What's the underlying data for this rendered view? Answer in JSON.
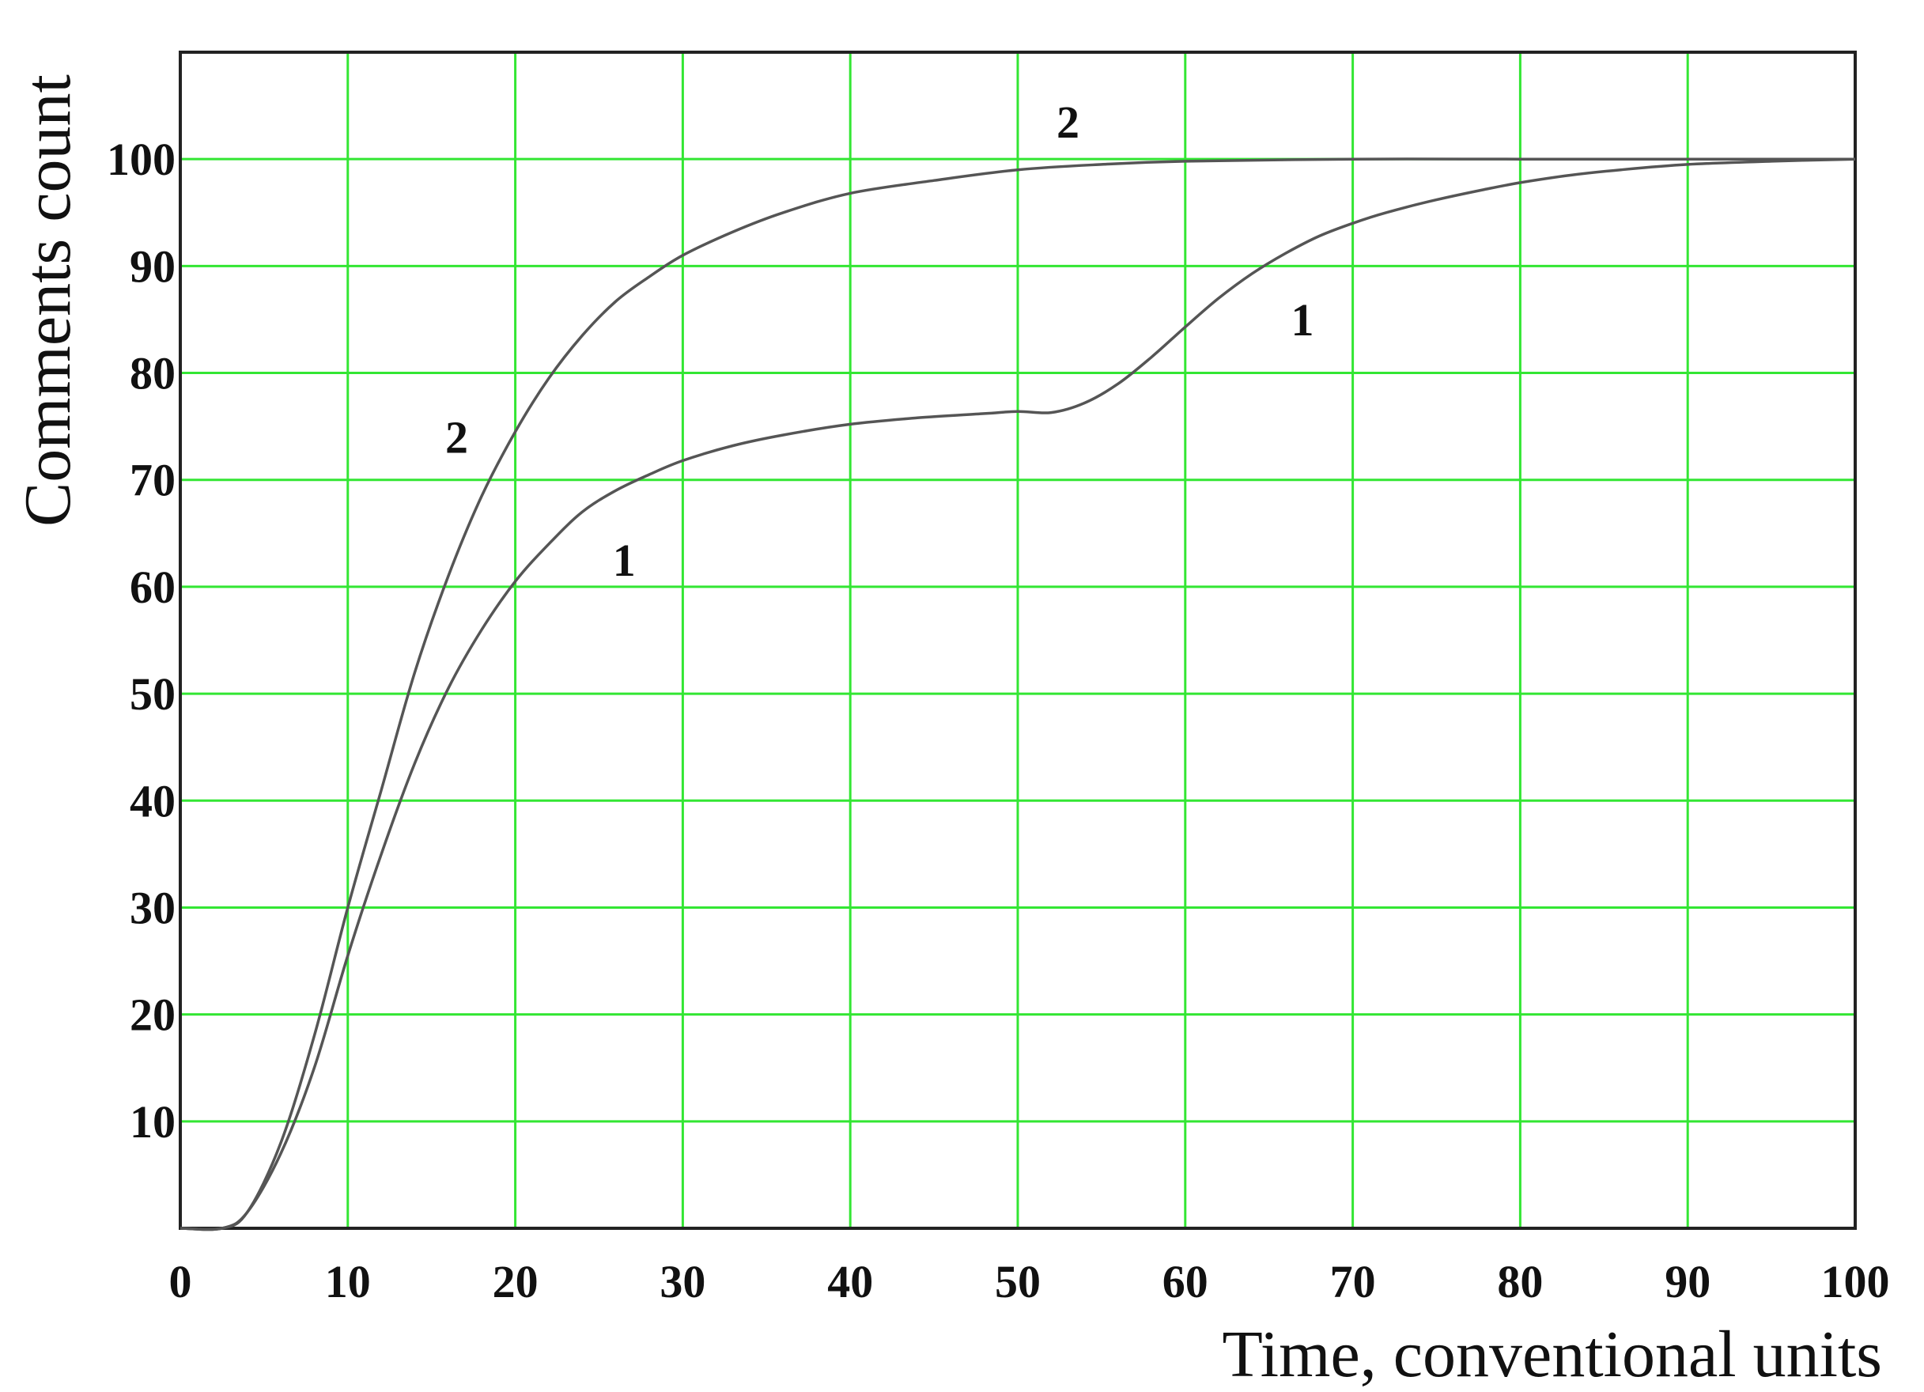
{
  "chart_data": {
    "type": "line",
    "title": "",
    "xlabel": "Time, conventional units",
    "ylabel": "Comments count",
    "xlim": [
      0,
      100
    ],
    "ylim": [
      0,
      110
    ],
    "x_ticks": [
      0,
      10,
      20,
      30,
      40,
      50,
      60,
      70,
      80,
      90,
      100
    ],
    "y_ticks": [
      10,
      20,
      30,
      40,
      50,
      60,
      70,
      80,
      90,
      100
    ],
    "x_tick_labels": [
      "0",
      "10",
      "20",
      "30",
      "40",
      "50",
      "60",
      "70",
      "80",
      "90",
      "100"
    ],
    "y_tick_labels": [
      "10",
      "20",
      "30",
      "40",
      "50",
      "60",
      "70",
      "80",
      "90",
      "100"
    ],
    "grid": true,
    "colors": {
      "grid": "#33e633",
      "curves": "#555555",
      "frame": "#222222"
    },
    "series": [
      {
        "name": "1",
        "x": [
          0,
          2.5,
          4,
          6,
          8,
          10,
          12,
          14,
          16,
          18,
          20,
          22,
          24,
          26,
          28,
          30,
          33,
          36,
          40,
          44,
          48,
          50,
          52,
          54,
          56,
          58,
          60,
          62,
          64,
          66,
          68,
          70,
          72,
          75,
          78,
          80,
          83,
          86,
          90,
          95,
          100
        ],
        "y": [
          0,
          0,
          1.5,
          7,
          15,
          25.5,
          35,
          43.5,
          50.5,
          56,
          60.5,
          64,
          67,
          69,
          70.5,
          71.8,
          73.2,
          74.2,
          75.2,
          75.8,
          76.2,
          76.4,
          76.3,
          77.2,
          79,
          81.5,
          84.3,
          87,
          89.3,
          91.2,
          92.8,
          94,
          95,
          96.2,
          97.2,
          97.8,
          98.5,
          99,
          99.5,
          99.8,
          100
        ]
      },
      {
        "name": "2",
        "x": [
          0,
          2.5,
          4,
          6,
          8,
          10,
          12,
          14,
          16,
          18,
          20,
          22,
          24,
          26,
          28,
          30,
          33,
          36,
          40,
          45,
          50,
          55,
          60,
          70,
          80,
          90,
          100
        ],
        "y": [
          0,
          0,
          1.5,
          8,
          18,
          30,
          41,
          52,
          61,
          68.5,
          74.5,
          79.5,
          83.5,
          86.7,
          89,
          91,
          93.2,
          95,
          96.8,
          98,
          99,
          99.5,
          99.8,
          100,
          100,
          100,
          100
        ]
      }
    ],
    "curve_labels": [
      {
        "text": "2",
        "x": 53,
        "y": 103.5
      },
      {
        "text": "2",
        "x": 16.5,
        "y": 74
      },
      {
        "text": "1",
        "x": 26.5,
        "y": 62.5
      },
      {
        "text": "1",
        "x": 67,
        "y": 85
      }
    ]
  }
}
